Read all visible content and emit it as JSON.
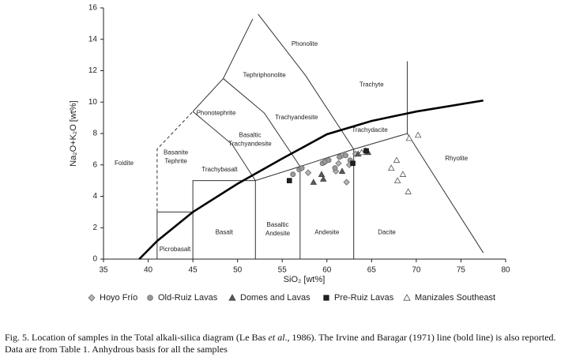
{
  "chart_data": {
    "type": "scatter",
    "xlabel": "SiO₂ [wt%]",
    "ylabel": "Na₂O+K₂O [wt%]",
    "xlim": [
      35,
      80
    ],
    "xticks": [
      35,
      40,
      45,
      50,
      55,
      60,
      65,
      70,
      75,
      80
    ],
    "ylim": [
      0,
      16
    ],
    "yticks": [
      0,
      2,
      4,
      6,
      8,
      10,
      12,
      14,
      16
    ],
    "series": [
      {
        "name": "Hoyo Frío",
        "marker": "diamond",
        "color": "#666",
        "fill": "#b5b5b5",
        "x": [
          57.9,
          59.8,
          61.3,
          61.7,
          62.2,
          62.5,
          63.2,
          61.0
        ],
        "y": [
          5.5,
          6.2,
          6.1,
          6.6,
          4.9,
          6.0,
          6.7,
          5.6
        ]
      },
      {
        "name": "Old-Ruiz Lavas",
        "marker": "circle",
        "color": "#666",
        "fill": "#9a9a9a",
        "x": [
          56.2,
          56.9,
          57.2,
          59.5,
          59.8,
          60.2,
          60.9,
          61.4,
          62.1,
          62.6
        ],
        "y": [
          5.4,
          5.7,
          5.8,
          6.1,
          6.2,
          6.3,
          5.8,
          6.5,
          6.6,
          6.3
        ]
      },
      {
        "name": "Domes and Lavas",
        "marker": "triangle",
        "color": "#444",
        "fill": "#5a5a5a",
        "x": [
          58.5,
          59.4,
          59.6,
          63.5,
          64.3,
          64.6,
          61.7
        ],
        "y": [
          4.9,
          5.4,
          5.1,
          6.7,
          6.9,
          6.8,
          5.6
        ]
      },
      {
        "name": "Pre-Ruiz Lavas",
        "marker": "square",
        "color": "#111",
        "fill": "#222",
        "x": [
          55.8,
          62.9,
          64.4
        ],
        "y": [
          5.0,
          6.1,
          6.9
        ]
      },
      {
        "name": "Manizales Southeast",
        "marker": "triangle",
        "color": "#555",
        "fill": "#fff",
        "x": [
          63.9,
          69.2,
          70.2,
          67.2,
          67.8,
          68.5,
          67.9,
          69.1
        ],
        "y": [
          6.8,
          7.7,
          7.9,
          5.8,
          6.3,
          5.4,
          5.0,
          4.3
        ]
      }
    ],
    "boundaries": [
      {
        "x": [
          41,
          41
        ],
        "y": [
          0,
          3
        ]
      },
      {
        "x": [
          41,
          41,
          45
        ],
        "y": [
          3,
          7,
          9.4
        ],
        "dashed": true
      },
      {
        "x": [
          41,
          45
        ],
        "y": [
          3,
          3
        ]
      },
      {
        "x": [
          45,
          45,
          52,
          57,
          63,
          69
        ],
        "y": [
          0,
          5,
          5,
          5.9,
          7,
          8
        ]
      },
      {
        "x": [
          52,
          52
        ],
        "y": [
          0,
          5
        ]
      },
      {
        "x": [
          57,
          57
        ],
        "y": [
          0,
          5.9
        ]
      },
      {
        "x": [
          63,
          63
        ],
        "y": [
          0,
          7
        ]
      },
      {
        "x": [
          45,
          49.4,
          52
        ],
        "y": [
          9.4,
          7.3,
          5
        ]
      },
      {
        "x": [
          48.4,
          53,
          57
        ],
        "y": [
          11.5,
          9.3,
          5.9
        ]
      },
      {
        "x": [
          45,
          48.4,
          51.7
        ],
        "y": [
          9.4,
          11.5,
          15.3
        ]
      },
      {
        "x": [
          52.3,
          57.6,
          63
        ],
        "y": [
          15.6,
          11.7,
          7
        ]
      },
      {
        "x": [
          69,
          69
        ],
        "y": [
          8,
          12.6
        ]
      },
      {
        "x": [
          69,
          77.5
        ],
        "y": [
          8,
          0.4
        ]
      }
    ],
    "irvine_baragar": {
      "x": [
        39,
        41,
        45,
        50,
        55,
        60,
        65,
        70,
        77.5
      ],
      "y": [
        0,
        1.15,
        3.0,
        4.8,
        6.4,
        7.95,
        8.8,
        9.4,
        10.1
      ]
    },
    "fields": [
      {
        "lines": [
          "Foidite"
        ],
        "x": 37.3,
        "y": 6.1
      },
      {
        "lines": [
          "Picrobasalt"
        ],
        "x": 43.0,
        "y": 0.6
      },
      {
        "lines": [
          "Basalt"
        ],
        "x": 48.5,
        "y": 1.7
      },
      {
        "lines": [
          "Basaltic",
          "Andesite"
        ],
        "x": 54.5,
        "y": 1.9
      },
      {
        "lines": [
          "Andesite"
        ],
        "x": 60.0,
        "y": 1.7
      },
      {
        "lines": [
          "Dacite"
        ],
        "x": 66.7,
        "y": 1.7
      },
      {
        "lines": [
          "Rhyolite"
        ],
        "x": 74.5,
        "y": 6.4
      },
      {
        "lines": [
          "Trachybasalt"
        ],
        "x": 48.0,
        "y": 5.7
      },
      {
        "lines": [
          "Basaltic",
          "Trachyandesite"
        ],
        "x": 51.4,
        "y": 7.6
      },
      {
        "lines": [
          "Trachyandesite"
        ],
        "x": 56.6,
        "y": 9.0
      },
      {
        "lines": [
          "Trachydacite"
        ],
        "x": 64.8,
        "y": 8.2
      },
      {
        "lines": [
          "Trachyte"
        ],
        "x": 65.0,
        "y": 11.1
      },
      {
        "lines": [
          "Phonotephrite"
        ],
        "x": 47.6,
        "y": 9.3
      },
      {
        "lines": [
          "Tephriphonolite"
        ],
        "x": 53.0,
        "y": 11.7
      },
      {
        "lines": [
          "Phonolite"
        ],
        "x": 57.5,
        "y": 13.7
      },
      {
        "lines": [
          "Basanite",
          "Tephrite"
        ],
        "x": 43.1,
        "y": 6.5
      }
    ]
  },
  "caption": [
    "Fig. 5. Location of samples in the Total alkali-silica diagram  (Le Bas ",
    "et al",
    "., 1986). The Irvine and Baragar (1971) line (bold line) is also reported. Data are from Table 1. Anhydrous basis for all the samples"
  ]
}
